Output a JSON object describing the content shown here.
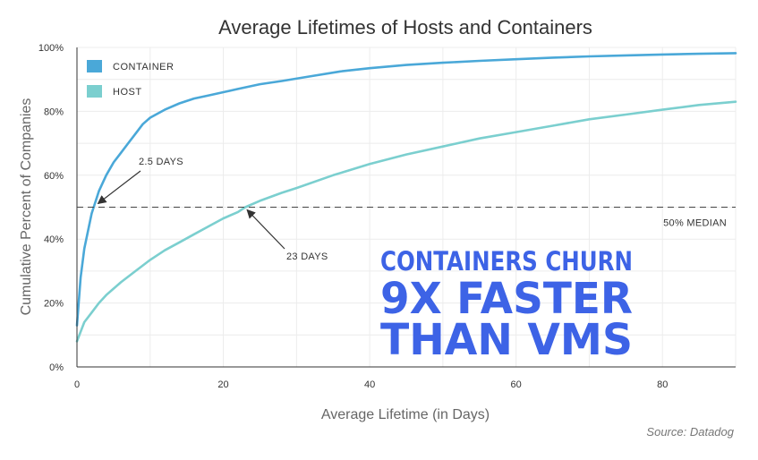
{
  "chart_data": {
    "type": "line",
    "title": "Average Lifetimes of Hosts and Containers",
    "xlabel": "Average Lifetime (in Days)",
    "ylabel": "Cumulative Percent of Companies",
    "xlim": [
      0,
      90
    ],
    "ylim": [
      0,
      100
    ],
    "x_ticks": [
      0,
      20,
      40,
      60,
      80
    ],
    "y_ticks": [
      0,
      20,
      40,
      60,
      80,
      100
    ],
    "y_tick_suffix": "%",
    "grid": true,
    "legend_position": "top-left",
    "series": [
      {
        "name": "CONTAINER",
        "color": "#4aa8d8",
        "x": [
          0,
          0.5,
          1,
          2,
          3,
          4,
          5,
          6,
          7,
          8,
          9,
          10,
          12,
          14,
          16,
          18,
          20,
          22,
          25,
          28,
          32,
          36,
          40,
          45,
          50,
          55,
          60,
          65,
          70,
          75,
          80,
          85,
          90
        ],
        "y": [
          13,
          28,
          37,
          48,
          55,
          60,
          64,
          67,
          70,
          73,
          76,
          78,
          80.5,
          82.5,
          84,
          85,
          86,
          87,
          88.5,
          89.5,
          91,
          92.5,
          93.5,
          94.5,
          95.2,
          95.8,
          96.3,
          96.8,
          97.2,
          97.5,
          97.8,
          98,
          98.2
        ]
      },
      {
        "name": "HOST",
        "color": "#7bcfcf",
        "x": [
          0,
          0.5,
          1,
          2,
          3,
          4,
          5,
          6,
          8,
          10,
          12,
          14,
          16,
          18,
          20,
          22,
          23,
          25,
          28,
          30,
          35,
          40,
          45,
          50,
          55,
          60,
          65,
          70,
          75,
          80,
          85,
          90
        ],
        "y": [
          8,
          11,
          14,
          17,
          20,
          22.5,
          24.5,
          26.5,
          30,
          33.5,
          36.5,
          39,
          41.5,
          44,
          46.5,
          48.5,
          50,
          52,
          54.5,
          56,
          60,
          63.5,
          66.5,
          69,
          71.5,
          73.5,
          75.5,
          77.5,
          79,
          80.5,
          82,
          83
        ]
      }
    ],
    "reference_line": {
      "y": 50,
      "label": "50% MEDIAN"
    },
    "annotations": [
      {
        "label": "2.5 DAYS",
        "x": 2.5,
        "y": 50
      },
      {
        "label": "23 DAYS",
        "x": 23,
        "y": 50
      }
    ],
    "callout": [
      "CONTAINERS CHURN",
      "9X FASTER",
      "THAN VMS"
    ],
    "source": "Source: Datadog"
  }
}
